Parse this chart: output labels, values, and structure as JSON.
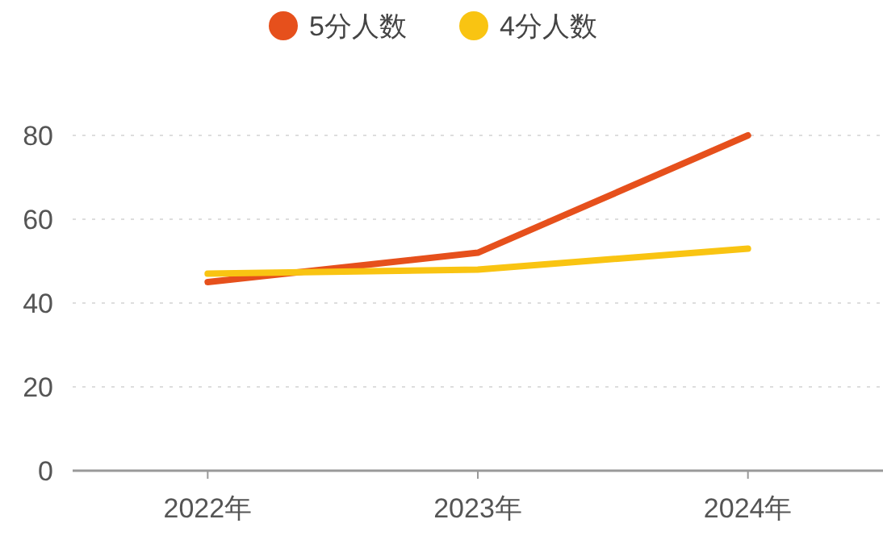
{
  "chart_data": {
    "type": "line",
    "categories": [
      "2022年",
      "2023年",
      "2024年"
    ],
    "series": [
      {
        "name": "5分人数",
        "color": "#e6501c",
        "values": [
          45,
          52,
          80
        ]
      },
      {
        "name": "4分人数",
        "color": "#f9c412",
        "values": [
          47,
          48,
          53
        ]
      }
    ],
    "ylim": [
      0,
      80
    ],
    "yticks": [
      0,
      20,
      40,
      60,
      80
    ],
    "grid": "y",
    "legend": "top",
    "marker": "none",
    "line_style": "solid"
  }
}
